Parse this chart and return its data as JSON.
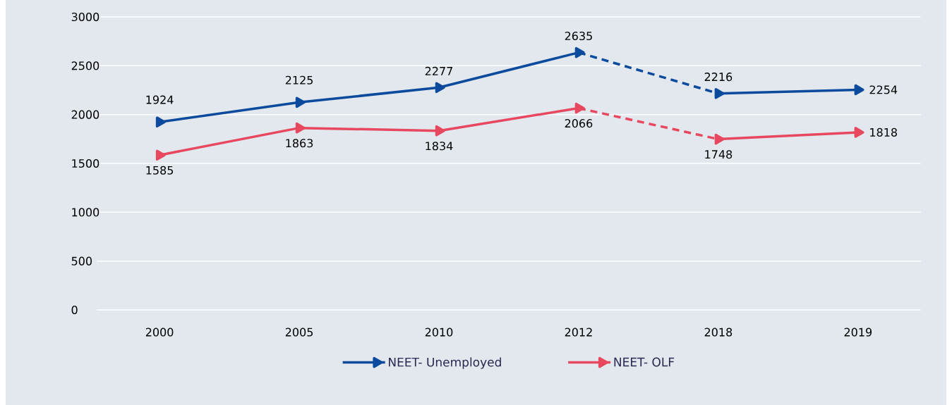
{
  "chart_data": {
    "type": "line",
    "categories": [
      "2000",
      "2005",
      "2010",
      "2012",
      "2018",
      "2019"
    ],
    "series": [
      {
        "name": "NEET- Unemployed",
        "color": "#0b4a9c",
        "values": [
          1924,
          2125,
          2277,
          2635,
          null,
          null
        ],
        "value_labels": [
          "1924",
          "2125",
          "2277",
          "2635",
          null,
          null
        ],
        "marker": "triangle",
        "line_style": "solid"
      },
      {
        "color": "#0b4a9c",
        "values": [
          null,
          null,
          null,
          2635,
          2216,
          null
        ],
        "line_style": "dashed"
      },
      {
        "color": "#0b4a9c",
        "values": [
          null,
          null,
          null,
          null,
          2216,
          2254
        ],
        "value_labels": [
          null,
          null,
          null,
          null,
          "2216",
          "2254"
        ],
        "marker": "triangle",
        "line_style": "solid"
      },
      {
        "name": "NEET- OLF",
        "color": "#e8485f",
        "values": [
          1585,
          1863,
          1834,
          2066,
          null,
          null
        ],
        "value_labels": [
          "1585",
          "1863",
          "1834",
          "2066",
          null,
          null
        ],
        "marker": "triangle",
        "line_style": "solid"
      },
      {
        "color": "#e8485f",
        "values": [
          null,
          null,
          null,
          2066,
          1748,
          null
        ],
        "line_style": "dashed"
      },
      {
        "color": "#e8485f",
        "values": [
          null,
          null,
          null,
          null,
          1748,
          1818
        ],
        "value_labels": [
          null,
          null,
          null,
          null,
          "1748",
          "1818"
        ],
        "marker": "triangle",
        "line_style": "solid"
      }
    ],
    "ylim": [
      0,
      3000
    ],
    "yticks": [
      0,
      500,
      1000,
      1500,
      2000,
      2500,
      3000
    ],
    "grid": "y",
    "legend": "bottom"
  }
}
